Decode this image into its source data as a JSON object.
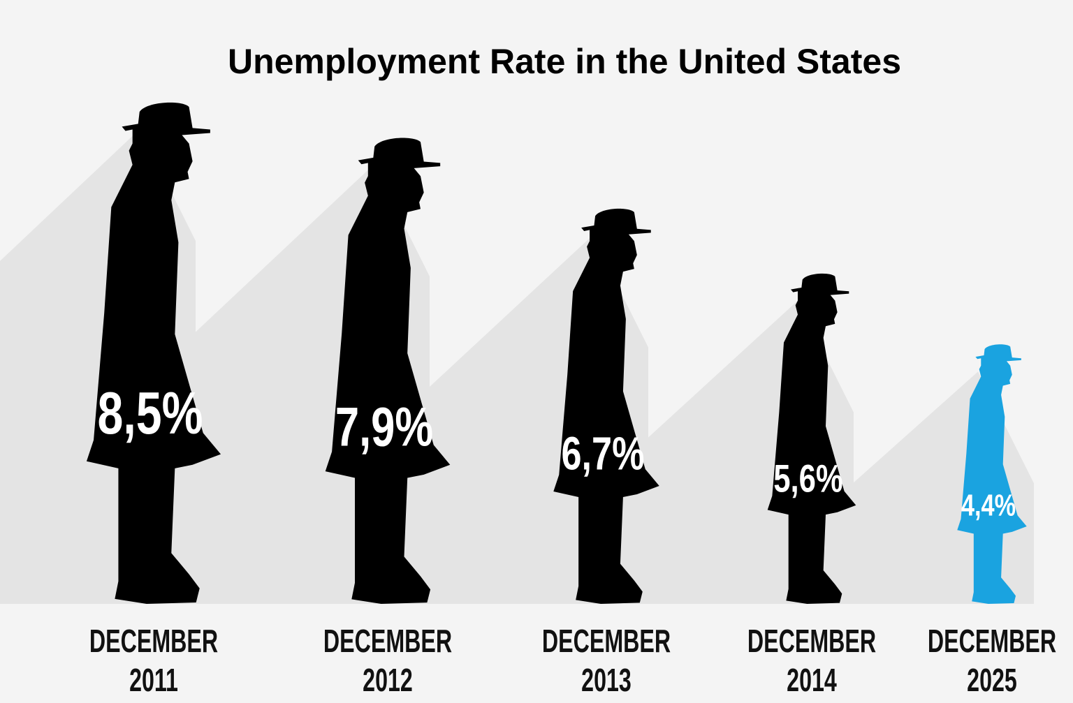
{
  "chart_data": {
    "type": "pictogram",
    "title": "Unemployment Rate in the United States",
    "categories": [
      "DECEMBER 2011",
      "DECEMBER 2012",
      "DECEMBER 2013",
      "DECEMBER 2014",
      "DECEMBER 2025"
    ],
    "values": [
      8.5,
      7.9,
      6.7,
      5.6,
      4.4
    ],
    "value_labels": [
      "8,5%",
      "7,9%",
      "6,7%",
      "5,6%",
      "4,4%"
    ],
    "colors": [
      "#000000",
      "#000000",
      "#000000",
      "#000000",
      "#1aa3e0"
    ]
  }
}
